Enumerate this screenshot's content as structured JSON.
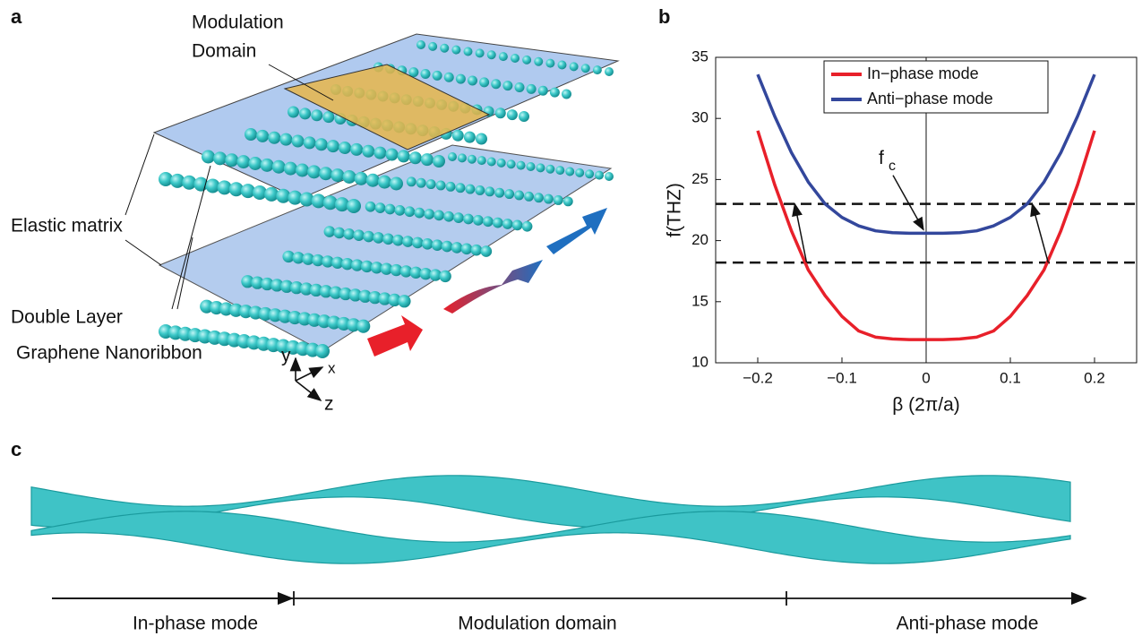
{
  "panels": {
    "a": {
      "letter": "a",
      "modulation": [
        "Modulation",
        "Domain"
      ],
      "elastic": "Elastic matrix",
      "double": [
        "Double Layer",
        "Graphene Nanoribbon"
      ],
      "axes": [
        "y",
        "x",
        "z"
      ]
    },
    "b": {
      "letter": "b"
    },
    "c": {
      "letter": "c",
      "labels": [
        "In-phase mode",
        "Modulation domain",
        "Anti-phase mode"
      ]
    }
  },
  "chart_data": {
    "type": "line",
    "xlabel": "β (2π/a)",
    "ylabel": "f(THZ)",
    "x": [
      -0.2,
      -0.18,
      -0.16,
      -0.14,
      -0.12,
      -0.1,
      -0.08,
      -0.06,
      -0.04,
      -0.02,
      0,
      0.02,
      0.04,
      0.06,
      0.08,
      0.1,
      0.12,
      0.14,
      0.16,
      0.18,
      0.2
    ],
    "series": [
      {
        "name": "In−phase mode",
        "color": "#e8202a",
        "values": [
          29,
          24.6,
          20.8,
          17.6,
          15.5,
          13.8,
          12.6,
          12.1,
          11.95,
          11.9,
          11.9,
          11.9,
          11.95,
          12.1,
          12.6,
          13.8,
          15.5,
          17.6,
          20.8,
          24.6,
          29
        ]
      },
      {
        "name": "Anti−phase mode",
        "color": "#33479c",
        "values": [
          33.6,
          30.2,
          27.2,
          24.8,
          23.0,
          21.9,
          21.2,
          20.8,
          20.65,
          20.6,
          20.6,
          20.6,
          20.65,
          20.8,
          21.2,
          21.9,
          23.0,
          24.8,
          27.2,
          30.2,
          33.6
        ]
      }
    ],
    "xlim": [
      -0.25,
      0.25
    ],
    "ylim": [
      10,
      35
    ],
    "xticks": [
      {
        "value": -0.2,
        "label": "−0.2"
      },
      {
        "value": -0.1,
        "label": "−0.1"
      },
      0,
      0.1,
      0.2
    ],
    "yticks": [
      10,
      15,
      20,
      25,
      30,
      35
    ],
    "hlines": [
      23,
      18.2
    ],
    "vline": 0,
    "annotation": {
      "text": "f",
      "sub": "c"
    },
    "arrows": [
      {
        "from": {
          "x": -0.142,
          "y": 18.2
        },
        "to": {
          "x": -0.156,
          "y": 23
        }
      },
      {
        "from": {
          "x": 0.145,
          "y": 18.2
        },
        "to": {
          "x": 0.126,
          "y": 23
        }
      }
    ],
    "legend": "top"
  }
}
